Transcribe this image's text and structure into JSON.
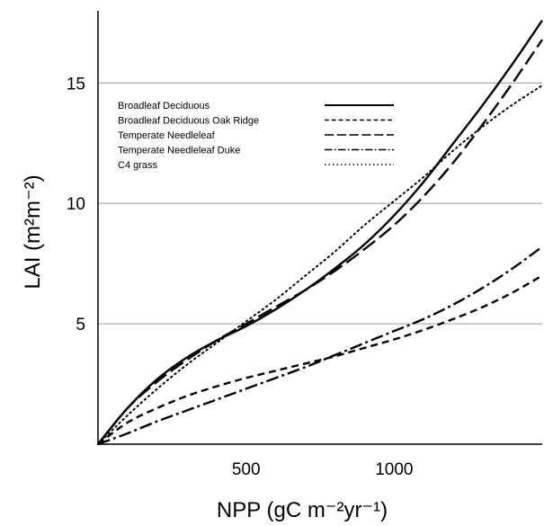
{
  "chart_data": {
    "type": "line",
    "title": "",
    "xlabel": "NPP (gC m⁻²yr⁻¹)",
    "ylabel": "LAI (m²m⁻²)",
    "xlim": [
      0,
      1500
    ],
    "ylim": [
      0,
      18
    ],
    "x_ticks": [
      500,
      1000
    ],
    "y_ticks": [
      5,
      10,
      15
    ],
    "grid": "horizontal",
    "legend_position": "top-left",
    "series": [
      {
        "name": "Broadleaf Deciduous",
        "style": "solid",
        "x": [
          0,
          100,
          200,
          300,
          400,
          500,
          600,
          700,
          800,
          900,
          1000,
          1100,
          1200,
          1300,
          1400,
          1500
        ],
        "y": [
          0,
          1.5,
          2.7,
          3.6,
          4.3,
          4.9,
          5.6,
          6.4,
          7.3,
          8.3,
          9.5,
          10.9,
          12.5,
          14.1,
          15.8,
          17.6
        ]
      },
      {
        "name": "Broadleaf Deciduous Oak Ridge",
        "style": "dashed-short",
        "x": [
          0,
          100,
          200,
          300,
          400,
          500,
          600,
          700,
          800,
          900,
          1000,
          1100,
          1200,
          1300,
          1400,
          1500
        ],
        "y": [
          0,
          0.9,
          1.5,
          2.0,
          2.4,
          2.75,
          3.05,
          3.35,
          3.65,
          4.0,
          4.35,
          4.75,
          5.2,
          5.7,
          6.3,
          7.0
        ]
      },
      {
        "name": "Temperate Needleleaf",
        "style": "dashed-long",
        "x": [
          0,
          100,
          200,
          300,
          400,
          500,
          600,
          700,
          800,
          900,
          1000,
          1100,
          1200,
          1300,
          1400,
          1500
        ],
        "y": [
          0,
          1.5,
          2.6,
          3.5,
          4.3,
          5.0,
          5.7,
          6.4,
          7.2,
          8.1,
          9.1,
          10.3,
          11.7,
          13.3,
          15.0,
          16.8
        ]
      },
      {
        "name": "Temperate Needleleaf Duke",
        "style": "dash-dot",
        "x": [
          0,
          100,
          200,
          300,
          400,
          500,
          600,
          700,
          800,
          900,
          1000,
          1100,
          1200,
          1300,
          1400,
          1500
        ],
        "y": [
          0,
          0.45,
          0.95,
          1.4,
          1.85,
          2.3,
          2.75,
          3.2,
          3.7,
          4.2,
          4.7,
          5.2,
          5.8,
          6.5,
          7.3,
          8.2
        ]
      },
      {
        "name": "C4 grass",
        "style": "dotted",
        "x": [
          0,
          100,
          200,
          300,
          400,
          500,
          600,
          700,
          800,
          900,
          1000,
          1100,
          1200,
          1300,
          1400,
          1500
        ],
        "y": [
          0,
          1.2,
          2.3,
          3.3,
          4.2,
          5.1,
          6.0,
          7.0,
          8.0,
          9.1,
          10.1,
          11.1,
          12.2,
          13.2,
          14.1,
          14.9
        ]
      }
    ]
  }
}
